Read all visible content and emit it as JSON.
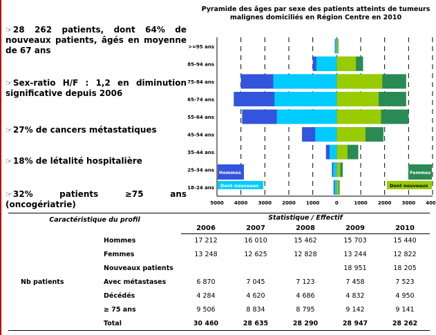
{
  "bullets": [
    {
      "icon": "pointing-hand-icon",
      "glyph": "☞",
      "text": "28 262 patients, dont 64% de nouveaux patients, âgés en moyenne de 67 ans"
    },
    {
      "icon": "pointing-hand-icon",
      "glyph": "☞",
      "text": "Sex-ratio H/F : 1,2 en diminution significative depuis 2006"
    },
    {
      "icon": "pointing-hand-icon",
      "glyph": "☞",
      "text": "27% de cancers métastatiques"
    },
    {
      "icon": "pointing-hand-icon",
      "glyph": "☞",
      "text": "18% de létalité hospitalière"
    },
    {
      "icon": "pointing-hand-icon",
      "glyph": "☞",
      "text": "32% patients ≥75 ans (oncogériatrie)"
    }
  ],
  "chart_data": {
    "type": "bar",
    "orientation": "horizontal",
    "title": "Pyramide des âges par sexe des patients atteints de tumeurs malignes domiciliés en Région Centre en 2010",
    "categories": [
      "18-24 ans",
      "25-34 ans",
      "35-44 ans",
      "45-54 ans",
      "55-64 ans",
      "65-74 ans",
      "75-84 ans",
      "85-94 ans",
      ">=95 ans"
    ],
    "series": [
      {
        "name": "Hommes",
        "side": "left",
        "color": "#3355dd",
        "values": [
          130,
          200,
          450,
          1450,
          3950,
          4300,
          4000,
          1000,
          80
        ]
      },
      {
        "name": "Dont nouveaux",
        "side": "left",
        "color": "#00ccff",
        "values": [
          90,
          150,
          300,
          900,
          2500,
          2600,
          2650,
          850,
          60
        ]
      },
      {
        "name": "Femmes",
        "side": "right",
        "color": "#2a8a55",
        "values": [
          120,
          250,
          900,
          1950,
          3000,
          2900,
          2900,
          1100,
          70
        ]
      },
      {
        "name": "Dont nouveaux",
        "side": "right",
        "color": "#99cc00",
        "values": [
          80,
          150,
          450,
          1200,
          1850,
          1750,
          1900,
          800,
          50
        ]
      }
    ],
    "xticks": [
      "5000",
      "4000",
      "3000",
      "2000",
      "1000",
      "0",
      "1000",
      "2000",
      "3000",
      "4000"
    ],
    "xlim": [
      -5000,
      4000
    ],
    "grid": "dashed vertical",
    "legend_placement": "inside bottom corners"
  },
  "table": {
    "header_profile": "Caractéristique du profil",
    "header_stat": "Statistique / Effectif",
    "years": [
      "2006",
      "2007",
      "2008",
      "2009",
      "2010"
    ],
    "group_label": "Nb patients",
    "rows": [
      {
        "label": "Hommes",
        "values": [
          "17 212",
          "16 010",
          "15 462",
          "15 703",
          "15 440"
        ]
      },
      {
        "label": "Femmes",
        "values": [
          "13 248",
          "12 625",
          "12 828",
          "13 244",
          "12 822"
        ]
      },
      {
        "label": "Nouveaux patients",
        "values": [
          "",
          "",
          "",
          "18 951",
          "18 205"
        ]
      },
      {
        "label": "Avec métastases",
        "values": [
          "6 870",
          "7 045",
          "7 123",
          "7 458",
          "7 523"
        ]
      },
      {
        "label": "Décédés",
        "values": [
          "4 284",
          "4 620",
          "4 686",
          "4 832",
          "4 950"
        ]
      },
      {
        "label": "≥ 75 ans",
        "values": [
          "9 506",
          "8 834",
          "8 795",
          "9 142",
          "9 141"
        ]
      },
      {
        "label": "Total",
        "values": [
          "30 460",
          "28 635",
          "28 290",
          "28 947",
          "28 262"
        ]
      }
    ]
  }
}
